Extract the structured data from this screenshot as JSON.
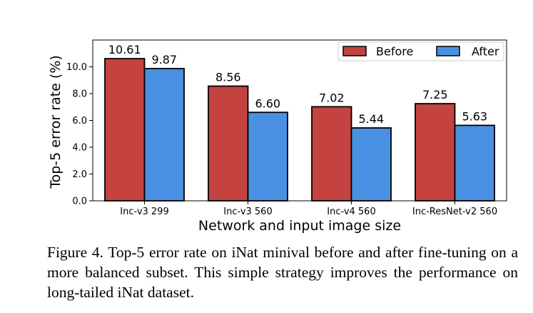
{
  "chart_data": {
    "type": "bar",
    "title": "",
    "xlabel": "Network and input image size",
    "ylabel": "Top-5 error rate (%)",
    "ylim": [
      0,
      12
    ],
    "yticks": [
      0.0,
      2.0,
      4.0,
      6.0,
      8.0,
      10.0
    ],
    "ytick_labels": [
      "0.0",
      "2.0",
      "4.0",
      "6.0",
      "8.0",
      "10.0"
    ],
    "categories": [
      "Inc-v3 299",
      "Inc-v3 560",
      "Inc-v4 560",
      "Inc-ResNet-v2 560"
    ],
    "series": [
      {
        "name": "Before",
        "color": "#c44240",
        "values": [
          10.61,
          8.56,
          7.02,
          7.25
        ],
        "labels": [
          "10.61",
          "8.56",
          "7.02",
          "7.25"
        ]
      },
      {
        "name": "After",
        "color": "#4a90e2",
        "values": [
          9.87,
          6.6,
          5.44,
          5.63
        ],
        "labels": [
          "9.87",
          "6.60",
          "5.44",
          "5.63"
        ]
      }
    ],
    "legend_position": "top-right",
    "grid": false
  },
  "caption": "Figure 4. Top-5 error rate on iNat minival before and after fine-tuning on a more balanced subset. This simple strategy improves the performance on long-tailed iNat dataset."
}
